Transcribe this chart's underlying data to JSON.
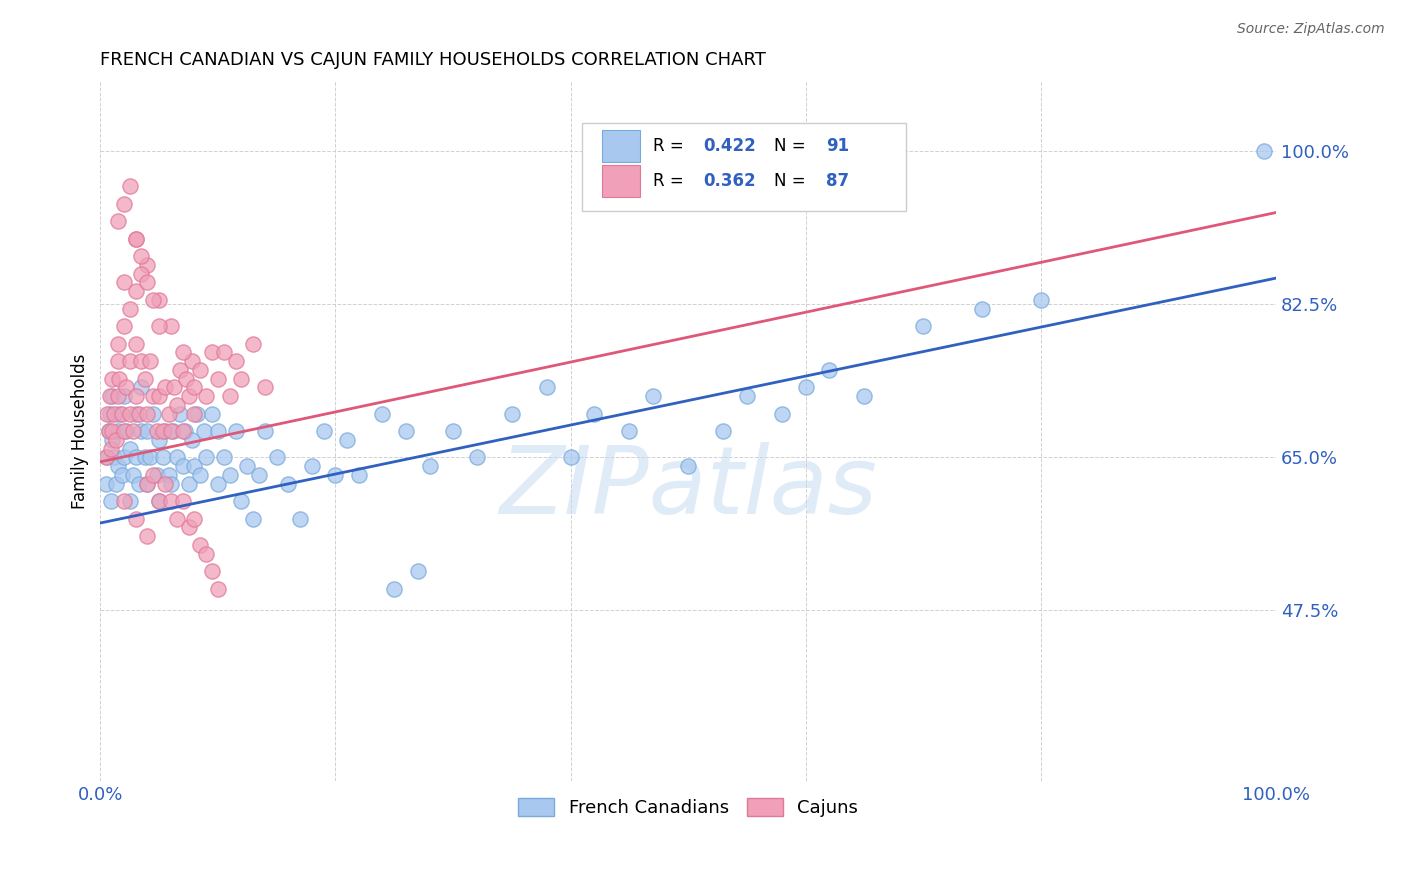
{
  "title": "FRENCH CANADIAN VS CAJUN FAMILY HOUSEHOLDS CORRELATION CHART",
  "source": "Source: ZipAtlas.com",
  "ylabel": "Family Households",
  "xmin": 0.0,
  "xmax": 1.0,
  "ymin": 0.28,
  "ymax": 1.08,
  "yticks": [
    0.475,
    0.65,
    0.825,
    1.0
  ],
  "ytick_labels": [
    "47.5%",
    "65.0%",
    "82.5%",
    "100.0%"
  ],
  "blue_color": "#A8C8F0",
  "pink_color": "#F0A0B8",
  "blue_edge_color": "#7AAADA",
  "pink_edge_color": "#E07898",
  "blue_line_color": "#3060C0",
  "pink_line_color": "#E05878",
  "tick_label_color": "#3060C0",
  "watermark": "ZIPatlas",
  "watermark_color": "#C0D8F0",
  "blue_trend_start": 0.575,
  "blue_trend_end": 0.855,
  "pink_trend_start": 0.645,
  "pink_trend_end": 0.93,
  "fc_x": [
    0.005,
    0.006,
    0.007,
    0.008,
    0.009,
    0.01,
    0.01,
    0.012,
    0.013,
    0.015,
    0.015,
    0.016,
    0.018,
    0.02,
    0.02,
    0.022,
    0.025,
    0.025,
    0.028,
    0.03,
    0.03,
    0.033,
    0.035,
    0.035,
    0.038,
    0.04,
    0.04,
    0.042,
    0.045,
    0.048,
    0.05,
    0.05,
    0.053,
    0.055,
    0.058,
    0.06,
    0.062,
    0.065,
    0.068,
    0.07,
    0.072,
    0.075,
    0.078,
    0.08,
    0.082,
    0.085,
    0.088,
    0.09,
    0.095,
    0.1,
    0.1,
    0.105,
    0.11,
    0.115,
    0.12,
    0.125,
    0.13,
    0.135,
    0.14,
    0.15,
    0.16,
    0.17,
    0.18,
    0.19,
    0.2,
    0.21,
    0.22,
    0.24,
    0.26,
    0.28,
    0.3,
    0.32,
    0.35,
    0.38,
    0.4,
    0.42,
    0.45,
    0.47,
    0.5,
    0.53,
    0.55,
    0.58,
    0.6,
    0.62,
    0.65,
    0.7,
    0.75,
    0.8,
    0.99,
    0.25,
    0.27
  ],
  "fc_y": [
    0.62,
    0.65,
    0.68,
    0.7,
    0.6,
    0.67,
    0.72,
    0.65,
    0.62,
    0.68,
    0.64,
    0.7,
    0.63,
    0.65,
    0.72,
    0.68,
    0.6,
    0.66,
    0.63,
    0.65,
    0.7,
    0.62,
    0.68,
    0.73,
    0.65,
    0.62,
    0.68,
    0.65,
    0.7,
    0.63,
    0.6,
    0.67,
    0.65,
    0.68,
    0.63,
    0.62,
    0.68,
    0.65,
    0.7,
    0.64,
    0.68,
    0.62,
    0.67,
    0.64,
    0.7,
    0.63,
    0.68,
    0.65,
    0.7,
    0.62,
    0.68,
    0.65,
    0.63,
    0.68,
    0.6,
    0.64,
    0.58,
    0.63,
    0.68,
    0.65,
    0.62,
    0.58,
    0.64,
    0.68,
    0.63,
    0.67,
    0.63,
    0.7,
    0.68,
    0.64,
    0.68,
    0.65,
    0.7,
    0.73,
    0.65,
    0.7,
    0.68,
    0.72,
    0.64,
    0.68,
    0.72,
    0.7,
    0.73,
    0.75,
    0.72,
    0.8,
    0.82,
    0.83,
    1.0,
    0.5,
    0.52
  ],
  "caj_x": [
    0.005,
    0.006,
    0.007,
    0.008,
    0.009,
    0.01,
    0.01,
    0.012,
    0.013,
    0.015,
    0.015,
    0.016,
    0.018,
    0.02,
    0.022,
    0.025,
    0.025,
    0.028,
    0.03,
    0.03,
    0.033,
    0.035,
    0.038,
    0.04,
    0.042,
    0.045,
    0.048,
    0.05,
    0.053,
    0.055,
    0.058,
    0.06,
    0.063,
    0.065,
    0.068,
    0.07,
    0.073,
    0.075,
    0.078,
    0.08,
    0.085,
    0.09,
    0.095,
    0.1,
    0.105,
    0.11,
    0.115,
    0.12,
    0.13,
    0.14,
    0.02,
    0.03,
    0.04,
    0.05,
    0.06,
    0.07,
    0.08,
    0.02,
    0.03,
    0.04,
    0.015,
    0.02,
    0.025,
    0.03,
    0.035,
    0.04,
    0.045,
    0.05,
    0.055,
    0.06,
    0.065,
    0.07,
    0.075,
    0.08,
    0.085,
    0.09,
    0.095,
    0.1,
    0.015,
    0.02,
    0.025,
    0.03,
    0.035,
    0.04,
    0.045,
    0.05
  ],
  "caj_y": [
    0.65,
    0.7,
    0.68,
    0.72,
    0.66,
    0.68,
    0.74,
    0.7,
    0.67,
    0.72,
    0.76,
    0.74,
    0.7,
    0.68,
    0.73,
    0.7,
    0.76,
    0.68,
    0.72,
    0.78,
    0.7,
    0.76,
    0.74,
    0.7,
    0.76,
    0.72,
    0.68,
    0.72,
    0.68,
    0.73,
    0.7,
    0.68,
    0.73,
    0.71,
    0.75,
    0.68,
    0.74,
    0.72,
    0.76,
    0.7,
    0.75,
    0.72,
    0.77,
    0.74,
    0.77,
    0.72,
    0.76,
    0.74,
    0.78,
    0.73,
    0.85,
    0.9,
    0.87,
    0.83,
    0.8,
    0.77,
    0.73,
    0.6,
    0.58,
    0.56,
    0.78,
    0.8,
    0.82,
    0.84,
    0.86,
    0.62,
    0.63,
    0.6,
    0.62,
    0.6,
    0.58,
    0.6,
    0.57,
    0.58,
    0.55,
    0.54,
    0.52,
    0.5,
    0.92,
    0.94,
    0.96,
    0.9,
    0.88,
    0.85,
    0.83,
    0.8
  ]
}
